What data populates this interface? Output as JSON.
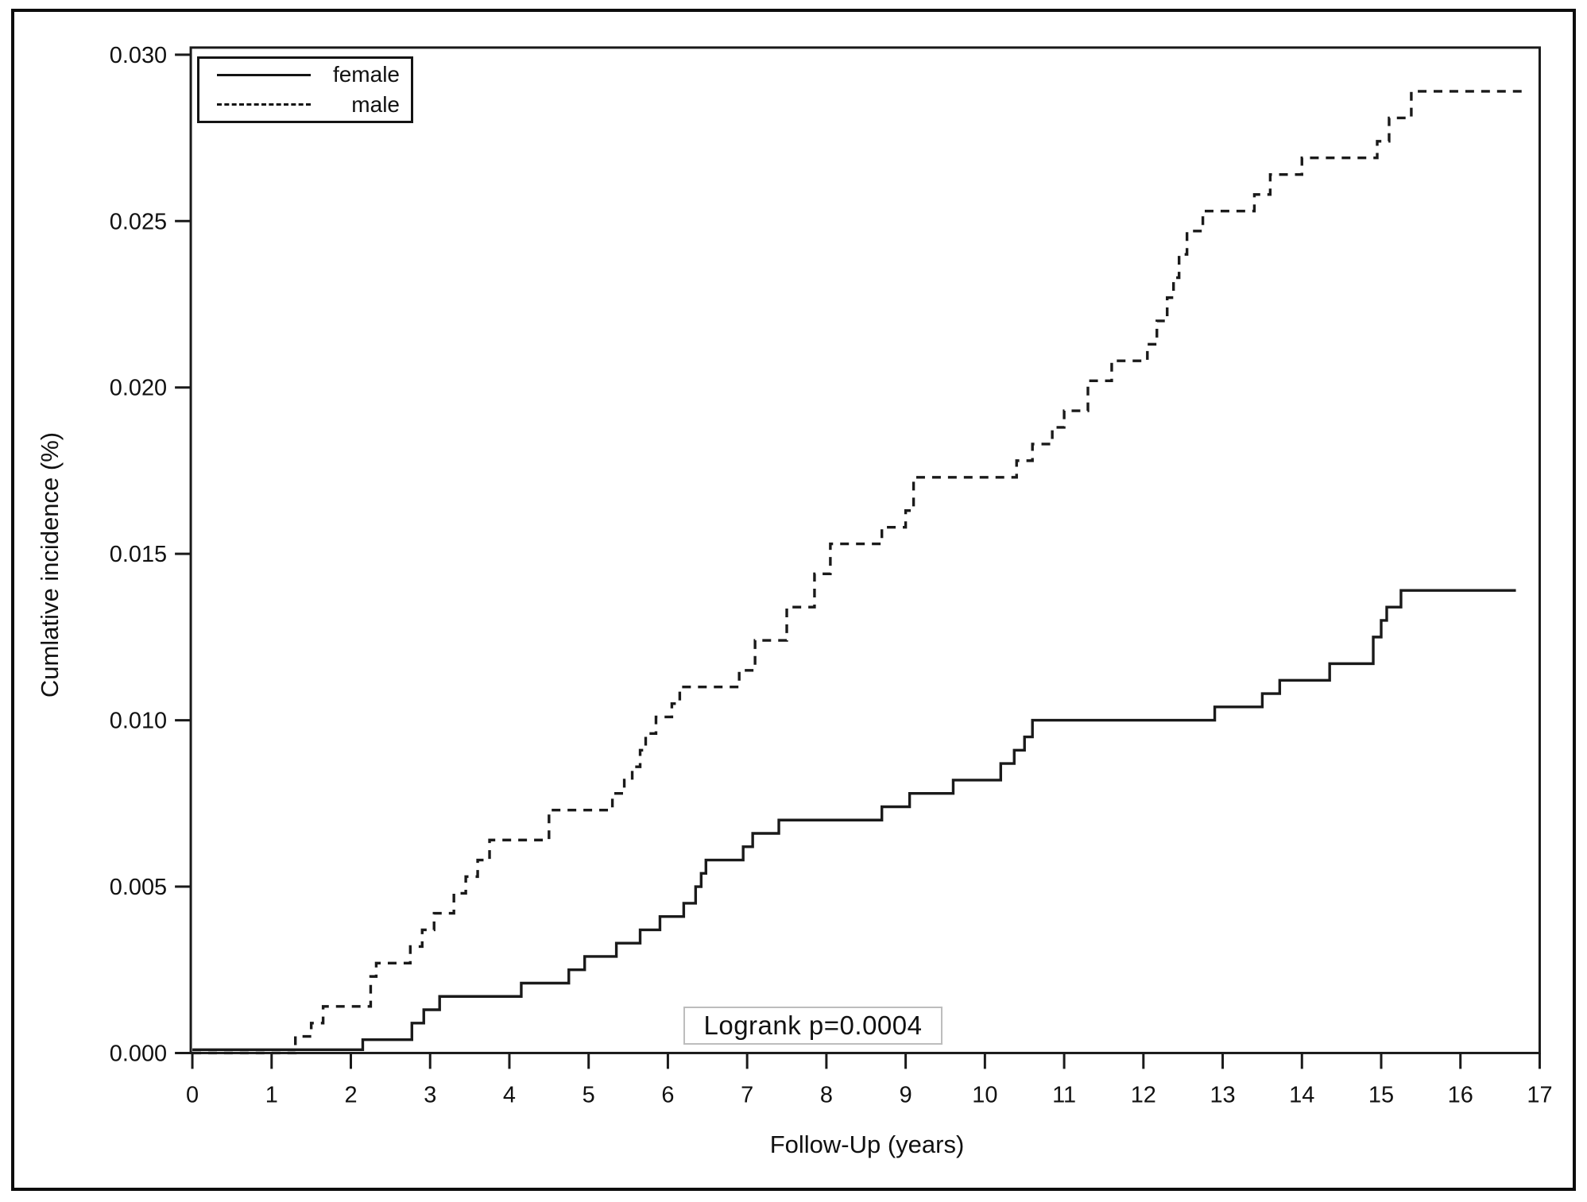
{
  "figure": {
    "background": "#ffffff",
    "frame_color": "#0d0d0d",
    "line_color": "#1a1a1a",
    "annotation_border_color": "#bdbdbd"
  },
  "legend": {
    "entries": [
      {
        "label": "female",
        "line_style": "solid"
      },
      {
        "label": "male",
        "line_style": "dashed"
      }
    ]
  },
  "annotation": {
    "text": "Logrank p=0.0004"
  },
  "axes": {
    "xlabel": "Follow-Up (years)",
    "ylabel": "Cumlative incidence (%)"
  },
  "chart_data": {
    "type": "line",
    "step": "after",
    "title": "",
    "xlabel": "Follow-Up (years)",
    "ylabel": "Cumlative incidence (%)",
    "xlim": [
      0,
      17
    ],
    "ylim": [
      0.0,
      0.03
    ],
    "x_ticks": [
      0,
      1,
      2,
      3,
      4,
      5,
      6,
      7,
      8,
      9,
      10,
      11,
      12,
      13,
      14,
      15,
      16,
      17
    ],
    "y_ticks": [
      0.0,
      0.005,
      0.01,
      0.015,
      0.02,
      0.025,
      0.03
    ],
    "grid": false,
    "legend_position": "top-left",
    "annotation": "Logrank p=0.0004",
    "series": [
      {
        "name": "female",
        "style": "solid",
        "points": [
          [
            0,
            0.0001
          ],
          [
            2.15,
            0.0004
          ],
          [
            2.77,
            0.0009
          ],
          [
            2.92,
            0.0013
          ],
          [
            3.12,
            0.0017
          ],
          [
            4.15,
            0.0021
          ],
          [
            4.75,
            0.0025
          ],
          [
            4.95,
            0.0029
          ],
          [
            5.35,
            0.0033
          ],
          [
            5.65,
            0.0037
          ],
          [
            5.9,
            0.0041
          ],
          [
            6.2,
            0.0045
          ],
          [
            6.35,
            0.005
          ],
          [
            6.42,
            0.0054
          ],
          [
            6.48,
            0.0058
          ],
          [
            6.95,
            0.0062
          ],
          [
            7.07,
            0.0066
          ],
          [
            7.4,
            0.007
          ],
          [
            8.7,
            0.0074
          ],
          [
            9.05,
            0.0078
          ],
          [
            9.6,
            0.0082
          ],
          [
            10.2,
            0.0087
          ],
          [
            10.37,
            0.0091
          ],
          [
            10.5,
            0.0095
          ],
          [
            10.6,
            0.01
          ],
          [
            12.9,
            0.0104
          ],
          [
            13.5,
            0.0108
          ],
          [
            13.72,
            0.0112
          ],
          [
            14.35,
            0.0117
          ],
          [
            14.9,
            0.0125
          ],
          [
            15.0,
            0.013
          ],
          [
            15.07,
            0.0134
          ],
          [
            15.25,
            0.0139
          ],
          [
            16.7,
            0.0139
          ]
        ]
      },
      {
        "name": "male",
        "style": "dashed",
        "points": [
          [
            0,
            0.0
          ],
          [
            1.3,
            0.0005
          ],
          [
            1.5,
            0.0009
          ],
          [
            1.65,
            0.0014
          ],
          [
            2.25,
            0.0023
          ],
          [
            2.32,
            0.0027
          ],
          [
            2.75,
            0.0032
          ],
          [
            2.9,
            0.0037
          ],
          [
            3.05,
            0.0042
          ],
          [
            3.3,
            0.0048
          ],
          [
            3.45,
            0.0053
          ],
          [
            3.6,
            0.0058
          ],
          [
            3.75,
            0.0064
          ],
          [
            4.5,
            0.0073
          ],
          [
            5.3,
            0.0078
          ],
          [
            5.45,
            0.0082
          ],
          [
            5.55,
            0.0086
          ],
          [
            5.65,
            0.0091
          ],
          [
            5.72,
            0.0096
          ],
          [
            5.85,
            0.0101
          ],
          [
            6.05,
            0.0105
          ],
          [
            6.15,
            0.011
          ],
          [
            6.9,
            0.0115
          ],
          [
            7.1,
            0.0124
          ],
          [
            7.5,
            0.0134
          ],
          [
            7.85,
            0.0144
          ],
          [
            8.05,
            0.0153
          ],
          [
            8.7,
            0.0158
          ],
          [
            9.0,
            0.0163
          ],
          [
            9.1,
            0.0173
          ],
          [
            10.4,
            0.0178
          ],
          [
            10.6,
            0.0183
          ],
          [
            10.85,
            0.0188
          ],
          [
            11.0,
            0.0193
          ],
          [
            11.3,
            0.0202
          ],
          [
            11.6,
            0.0208
          ],
          [
            12.05,
            0.0213
          ],
          [
            12.17,
            0.022
          ],
          [
            12.3,
            0.0227
          ],
          [
            12.38,
            0.0233
          ],
          [
            12.45,
            0.024
          ],
          [
            12.55,
            0.0247
          ],
          [
            12.75,
            0.0253
          ],
          [
            13.4,
            0.0258
          ],
          [
            13.6,
            0.0264
          ],
          [
            14.0,
            0.0269
          ],
          [
            14.95,
            0.0274
          ],
          [
            15.1,
            0.0281
          ],
          [
            15.38,
            0.0289
          ],
          [
            16.85,
            0.0289
          ]
        ]
      }
    ]
  }
}
